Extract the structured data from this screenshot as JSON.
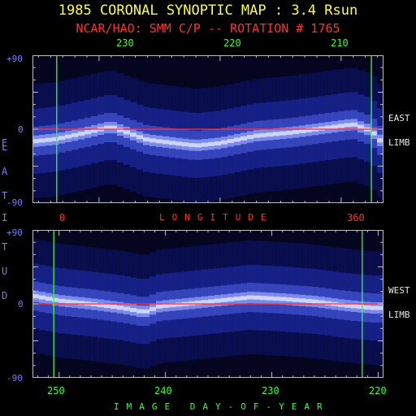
{
  "title": "1985 CORONAL SYNOPTIC MAP : 3.4 Rsun",
  "subtitle": "NCAR/HAO: SMM C/P -- ROTATION # 1765",
  "top_axis_ticks": [
    "230",
    "220",
    "210"
  ],
  "longitude_ticks": [
    "0",
    "360"
  ],
  "longitude_label": "LONGITUDE",
  "latitude_label": "LATITUDE",
  "xlabel": "IMAGE DAY-OF-YEAR",
  "east_label": [
    "EAST",
    "LIMB"
  ],
  "west_label": [
    "WEST",
    "LIMB"
  ],
  "colors": {
    "title": "#ffff33",
    "subtitle": "#ff3030",
    "day_ticks": "#33ff33",
    "lat_ticks": "#7a7aff",
    "equator_line": "#ff3030",
    "marker_lines": "#33ff33",
    "map_low": "#050520",
    "map_high": "#ffffff"
  },
  "chart_data": [
    {
      "type": "heatmap",
      "panel": "east-limb",
      "ylim": [
        -90,
        90
      ],
      "y_ticks": [
        "+90",
        "0",
        "-90"
      ],
      "x_day_range": [
        235.5,
        206.5
      ],
      "day_ticks": [
        230,
        220,
        210
      ],
      "longitude_markers": [
        {
          "label": "0",
          "day": 233.5
        },
        {
          "label": "360",
          "day": 207.5
        }
      ],
      "streamer_belt_lat": [
        [
          235.5,
          -15
        ],
        [
          233.5,
          -12
        ],
        [
          231,
          -4
        ],
        [
          229,
          3
        ],
        [
          226,
          -13
        ],
        [
          222,
          -20
        ],
        [
          220,
          -17
        ],
        [
          217,
          -8
        ],
        [
          214,
          -4
        ],
        [
          211,
          2
        ],
        [
          209,
          6
        ],
        [
          207.5,
          -2
        ],
        [
          206.5,
          -18
        ]
      ]
    },
    {
      "type": "heatmap",
      "panel": "west-limb",
      "ylim": [
        -90,
        90
      ],
      "y_ticks": [
        "+90",
        "0",
        "-90"
      ],
      "x_day_range": [
        252.5,
        219.5
      ],
      "day_ticks": [
        250,
        240,
        230,
        220
      ],
      "longitude_markers": [
        {
          "label": "0",
          "day": 250.5
        },
        {
          "label": "360",
          "day": 221.5
        }
      ],
      "streamer_belt_lat": [
        [
          252.5,
          10
        ],
        [
          250,
          4
        ],
        [
          247,
          0
        ],
        [
          244,
          -5
        ],
        [
          242,
          -10
        ],
        [
          240.5,
          -3
        ],
        [
          238,
          0
        ],
        [
          235,
          4
        ],
        [
          232,
          8
        ],
        [
          229,
          6
        ],
        [
          226,
          3
        ],
        [
          223,
          -2
        ],
        [
          220.5,
          -5
        ]
      ]
    }
  ]
}
